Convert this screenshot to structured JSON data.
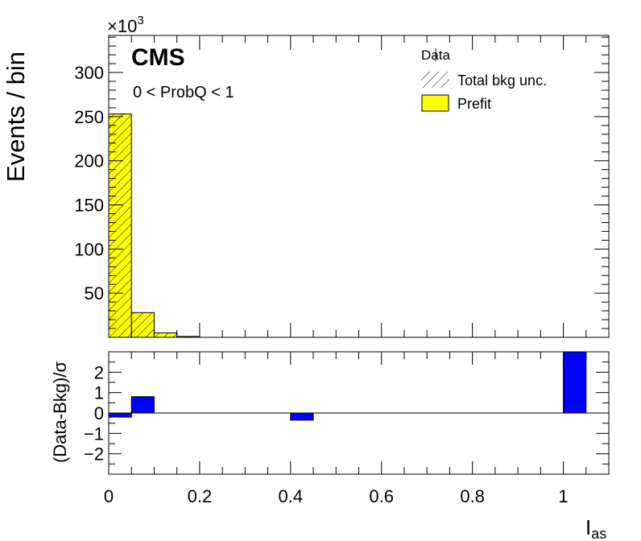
{
  "chart_data": [
    {
      "type": "bar",
      "panel": "main",
      "experiment": "CMS",
      "selection": "0 < ProbQ < 1",
      "ylabel": "Events / bin",
      "y_multiplier_label": "×10",
      "y_multiplier_exp": "3",
      "ylim": [
        0,
        342
      ],
      "ytick_labels": [
        "50",
        "100",
        "150",
        "200",
        "250",
        "300"
      ],
      "xlim": [
        0,
        1.1
      ],
      "bin_width": 0.05,
      "bin_edges": [
        0,
        0.05,
        0.1,
        0.15,
        0.2
      ],
      "series": [
        {
          "name": "Prefit",
          "values": [
            253,
            28,
            5,
            1
          ]
        }
      ],
      "legend": [
        "Data",
        "Total bkg unc.",
        "Prefit"
      ],
      "legend_position": "top-right",
      "colors": {
        "prefit_fill": "#ffff00",
        "outline": "#000000"
      }
    },
    {
      "type": "bar",
      "panel": "ratio",
      "ylabel": "(Data-Bkg)/σ",
      "ylim": [
        -3,
        3
      ],
      "ytick_labels": [
        "−2",
        "−1",
        "0",
        "1",
        "2"
      ],
      "xlabel": "I",
      "xlabel_sub": "as",
      "xlim": [
        0,
        1.1
      ],
      "xtick_labels": [
        "0",
        "0.2",
        "0.4",
        "0.6",
        "0.8",
        "1"
      ],
      "bins": [
        {
          "x0": 0.0,
          "x1": 0.05,
          "value": -0.2
        },
        {
          "x0": 0.05,
          "x1": 0.1,
          "value": 0.8
        },
        {
          "x0": 0.4,
          "x1": 0.45,
          "value": -0.35
        },
        {
          "x0": 1.0,
          "x1": 1.05,
          "value": 3.0
        }
      ],
      "colors": {
        "pull_fill": "#0000ff"
      }
    }
  ]
}
